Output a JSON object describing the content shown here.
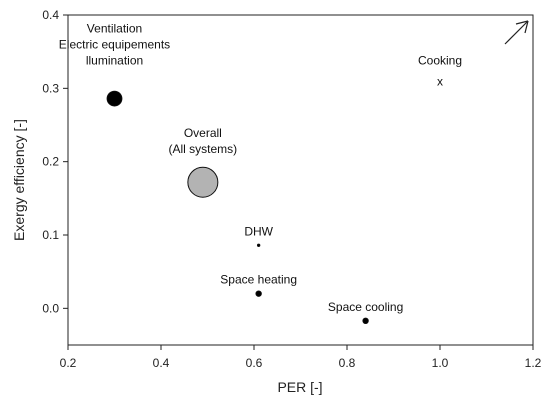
{
  "chart_data": {
    "type": "scatter",
    "xlabel": "PER [-]",
    "ylabel": "Exergy efficiency [-]",
    "xlim": [
      0.2,
      1.2
    ],
    "ylim": [
      -0.05,
      0.4
    ],
    "x_ticks": [
      "0.2",
      "0.4",
      "0.6",
      "0.8",
      "1.0",
      "1.2"
    ],
    "y_ticks": [
      "0.0",
      "0.1",
      "0.2",
      "0.3",
      "0.4"
    ],
    "grid": false,
    "legend": "none",
    "points": [
      {
        "label": [
          "Ventilation",
          "Electric equipements",
          "llumination"
        ],
        "x": 0.3,
        "y": 0.286,
        "marker": "circle",
        "size": "medium",
        "color": "#000000"
      },
      {
        "label": [
          "Overall",
          "(All systems)"
        ],
        "x": 0.49,
        "y": 0.172,
        "marker": "circle",
        "size": "large",
        "color": "#b3b3b3"
      },
      {
        "label": [
          "DHW"
        ],
        "x": 0.61,
        "y": 0.086,
        "marker": "dot",
        "size": "tiny",
        "color": "#000000"
      },
      {
        "label": [
          "Space heating"
        ],
        "x": 0.61,
        "y": 0.02,
        "marker": "dot",
        "size": "small",
        "color": "#000000"
      },
      {
        "label": [
          "Space cooling"
        ],
        "x": 0.84,
        "y": -0.017,
        "marker": "dot",
        "size": "small",
        "color": "#000000"
      },
      {
        "label": [
          "Cooking"
        ],
        "x": 1.0,
        "y": 0.309,
        "marker": "x",
        "symbol": "x",
        "size": "small",
        "color": "#000000"
      }
    ],
    "arrow": {
      "direction": "upper-right",
      "meaning": "off-scale"
    }
  }
}
